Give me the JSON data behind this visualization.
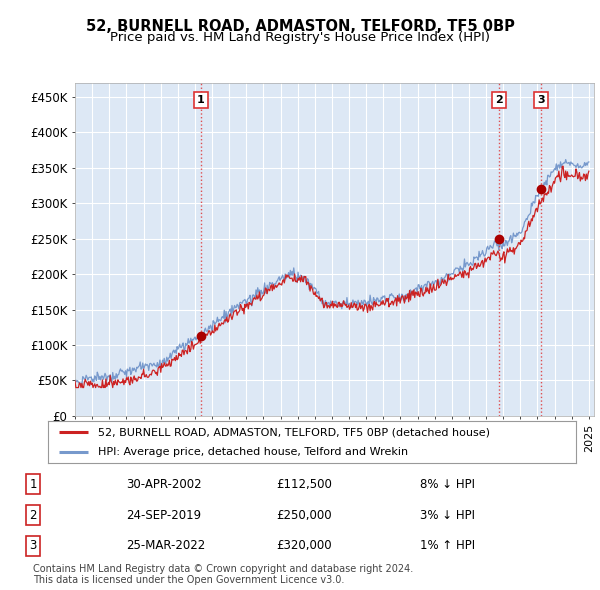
{
  "title": "52, BURNELL ROAD, ADMASTON, TELFORD, TF5 0BP",
  "subtitle": "Price paid vs. HM Land Registry's House Price Index (HPI)",
  "ylabel_ticks": [
    "£0",
    "£50K",
    "£100K",
    "£150K",
    "£200K",
    "£250K",
    "£300K",
    "£350K",
    "£400K",
    "£450K"
  ],
  "ytick_values": [
    0,
    50000,
    100000,
    150000,
    200000,
    250000,
    300000,
    350000,
    400000,
    450000
  ],
  "ylim": [
    0,
    470000
  ],
  "xlim_start": 1995.0,
  "xlim_end": 2025.3,
  "sale_dates": [
    2002.33,
    2019.73,
    2022.23
  ],
  "sale_prices": [
    112500,
    250000,
    320000
  ],
  "sale_labels": [
    "1",
    "2",
    "3"
  ],
  "vline_color": "#dd3333",
  "sale_marker_color": "#aa0000",
  "red_line_color": "#cc2222",
  "blue_line_color": "#7799cc",
  "plot_bg_color": "#dde8f5",
  "background_color": "#ffffff",
  "grid_color": "#ffffff",
  "legend_entries": [
    "52, BURNELL ROAD, ADMASTON, TELFORD, TF5 0BP (detached house)",
    "HPI: Average price, detached house, Telford and Wrekin"
  ],
  "table_data": [
    [
      "1",
      "30-APR-2002",
      "£112,500",
      "8% ↓ HPI"
    ],
    [
      "2",
      "24-SEP-2019",
      "£250,000",
      "3% ↓ HPI"
    ],
    [
      "3",
      "25-MAR-2022",
      "£320,000",
      "1% ↑ HPI"
    ]
  ],
  "footnote": "Contains HM Land Registry data © Crown copyright and database right 2024.\nThis data is licensed under the Open Government Licence v3.0.",
  "title_fontsize": 10.5,
  "subtitle_fontsize": 9.5,
  "axis_fontsize": 8.5,
  "legend_fontsize": 8.0,
  "table_fontsize": 8.5,
  "footnote_fontsize": 7.0
}
